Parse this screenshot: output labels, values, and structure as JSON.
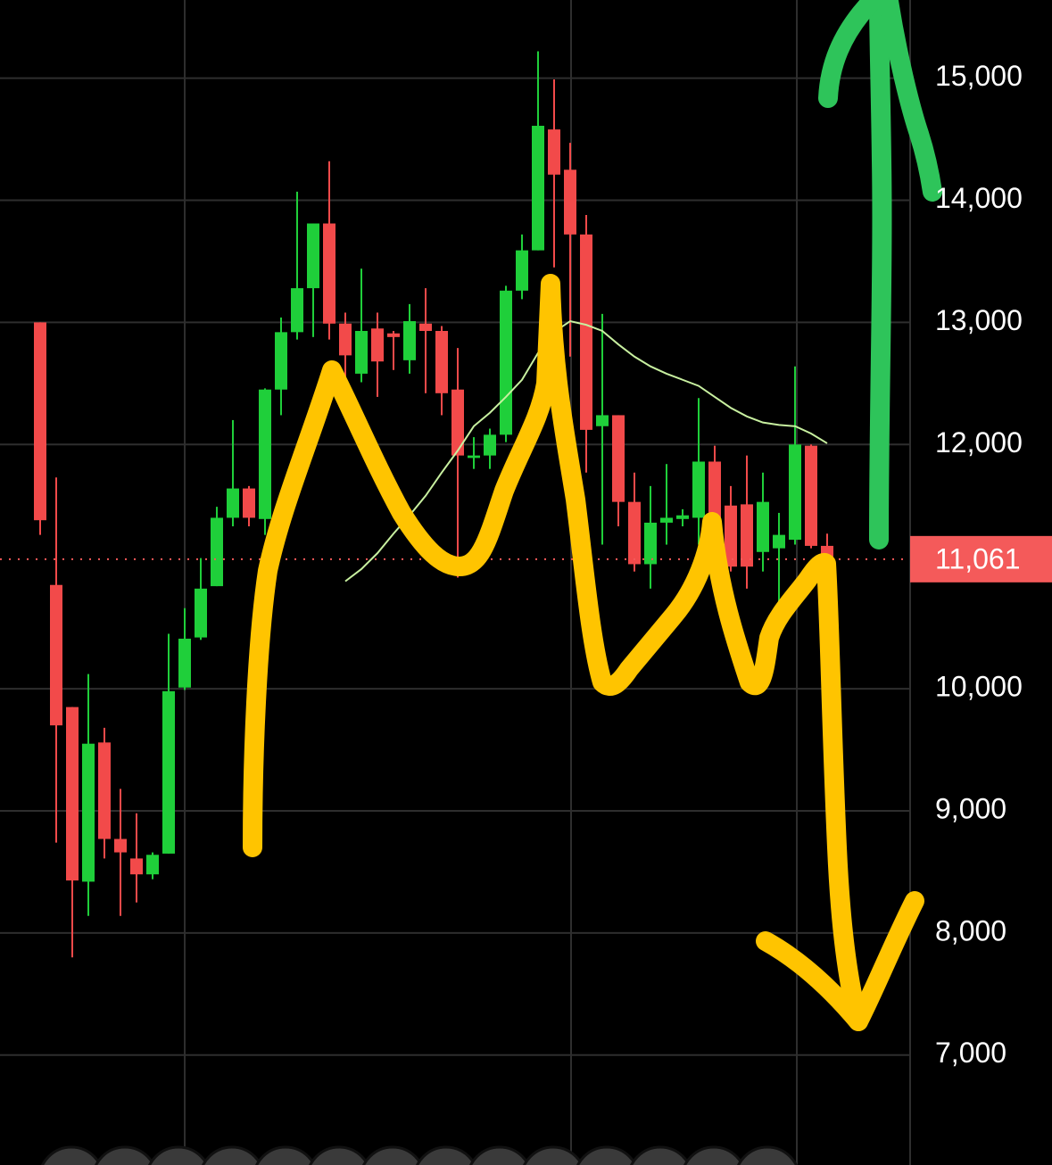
{
  "chart_data": {
    "type": "candlestick",
    "open": [
      13000,
      10850,
      9850,
      8420,
      9560,
      8770,
      8610,
      8480,
      8650,
      10010,
      10420,
      10840,
      11400,
      11640,
      11390,
      12450,
      12920,
      13280,
      13810,
      12990,
      12580,
      12950,
      12910,
      12690,
      12990,
      12930,
      12450,
      11890,
      11910,
      12080,
      13260,
      13590,
      14580,
      14250,
      13720,
      12150,
      12240,
      11530,
      11020,
      11360,
      11390,
      11400,
      11860,
      11500,
      11510,
      11120,
      11150,
      11220,
      11990,
      11170
    ],
    "high": [
      13000,
      11730,
      9850,
      10120,
      9680,
      9180,
      8980,
      8660,
      10450,
      10660,
      11070,
      11490,
      12200,
      11660,
      12460,
      13040,
      14070,
      13810,
      14320,
      13080,
      13440,
      13080,
      12930,
      13150,
      13280,
      12970,
      12790,
      12060,
      12130,
      13300,
      13720,
      15220,
      14990,
      14470,
      13880,
      13070,
      12240,
      11770,
      11660,
      11840,
      11470,
      12380,
      11990,
      11660,
      11910,
      11770,
      11440,
      12640,
      12000,
      11270
    ],
    "low": [
      11260,
      8740,
      7800,
      8140,
      8610,
      8140,
      8250,
      8440,
      8650,
      9990,
      10400,
      10840,
      11330,
      11330,
      11260,
      12240,
      12860,
      12880,
      12860,
      12500,
      12510,
      12390,
      12610,
      12580,
      12420,
      12240,
      10910,
      11800,
      11800,
      12020,
      13190,
      13590,
      13450,
      12720,
      11770,
      11180,
      11330,
      10960,
      10820,
      11180,
      11330,
      11180,
      11070,
      10960,
      10820,
      10960,
      10670,
      11180,
      11150,
      11040
    ],
    "close": [
      11380,
      9700,
      8430,
      9550,
      8770,
      8660,
      8480,
      8640,
      9980,
      10410,
      10820,
      11400,
      11640,
      11400,
      12450,
      12920,
      13280,
      13810,
      12990,
      12730,
      12930,
      12680,
      12880,
      13010,
      12930,
      12420,
      11910,
      11910,
      12080,
      13260,
      13590,
      14610,
      14210,
      13720,
      12120,
      12240,
      11530,
      11020,
      11360,
      11400,
      11420,
      11860,
      11400,
      11000,
      11000,
      11530,
      11260,
      12000,
      11170,
      11061
    ],
    "up_color": "#1fcf3a",
    "down_color": "#f24a4a",
    "ma": {
      "color": "#c8f0a0",
      "values": [
        null,
        null,
        null,
        null,
        null,
        null,
        null,
        null,
        null,
        null,
        null,
        null,
        null,
        null,
        null,
        null,
        null,
        null,
        null,
        10880,
        10980,
        11110,
        11270,
        11420,
        11580,
        11770,
        11950,
        12150,
        12260,
        12390,
        12530,
        12750,
        12920,
        13010,
        12980,
        12930,
        12820,
        12720,
        12640,
        12580,
        12530,
        12480,
        12390,
        12300,
        12230,
        12180,
        12160,
        12150,
        12090,
        12010
      ]
    },
    "ylim": [
      6100,
      15640
    ],
    "yticks": [
      {
        "value": 7000,
        "label": "7,000"
      },
      {
        "value": 8000,
        "label": "8,000"
      },
      {
        "value": 9000,
        "label": "9,000"
      },
      {
        "value": 10000,
        "label": "10,000"
      },
      {
        "value": 12000,
        "label": "12,000"
      },
      {
        "value": 13000,
        "label": "13,000"
      },
      {
        "value": 14000,
        "label": "14,000"
      },
      {
        "value": 15000,
        "label": "15,000"
      }
    ],
    "last_price": {
      "value": 11061,
      "label": "11,061",
      "color": "#f45a5a"
    },
    "grid": true
  }
}
